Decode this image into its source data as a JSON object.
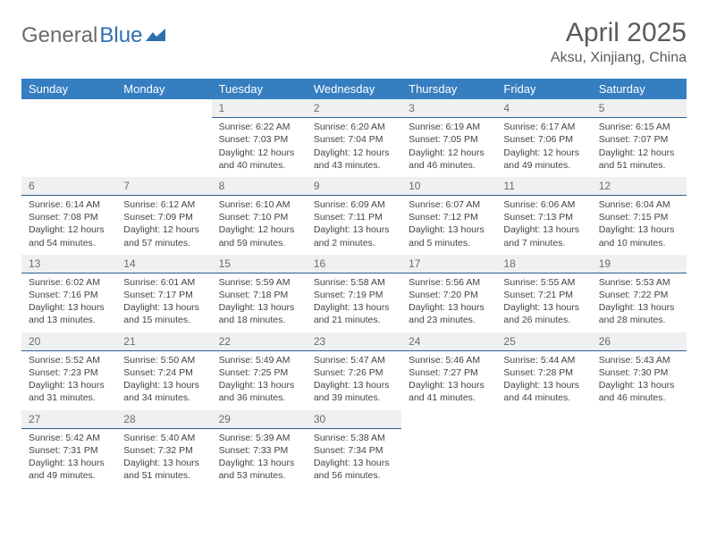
{
  "logo": {
    "part1": "General",
    "part2": "Blue"
  },
  "title": "April 2025",
  "location": "Aksu, Xinjiang, China",
  "colors": {
    "header_bg": "#357ec0",
    "header_text": "#ffffff",
    "daynum_bg": "#eef0f2",
    "daynum_border": "#2e5e8f",
    "body_bg": "#ffffff",
    "text": "#444444",
    "title_text": "#5a5a5a",
    "logo_gray": "#6b6b6b",
    "logo_blue": "#2f6fae"
  },
  "typography": {
    "title_fontsize": 30,
    "location_fontsize": 16,
    "weekday_fontsize": 13,
    "daynum_fontsize": 12,
    "body_fontsize": 10.5
  },
  "weekdays": [
    "Sunday",
    "Monday",
    "Tuesday",
    "Wednesday",
    "Thursday",
    "Friday",
    "Saturday"
  ],
  "weeks": [
    [
      {
        "empty": true
      },
      {
        "empty": true
      },
      {
        "num": "1",
        "sunrise": "Sunrise: 6:22 AM",
        "sunset": "Sunset: 7:03 PM",
        "daylight1": "Daylight: 12 hours",
        "daylight2": "and 40 minutes."
      },
      {
        "num": "2",
        "sunrise": "Sunrise: 6:20 AM",
        "sunset": "Sunset: 7:04 PM",
        "daylight1": "Daylight: 12 hours",
        "daylight2": "and 43 minutes."
      },
      {
        "num": "3",
        "sunrise": "Sunrise: 6:19 AM",
        "sunset": "Sunset: 7:05 PM",
        "daylight1": "Daylight: 12 hours",
        "daylight2": "and 46 minutes."
      },
      {
        "num": "4",
        "sunrise": "Sunrise: 6:17 AM",
        "sunset": "Sunset: 7:06 PM",
        "daylight1": "Daylight: 12 hours",
        "daylight2": "and 49 minutes."
      },
      {
        "num": "5",
        "sunrise": "Sunrise: 6:15 AM",
        "sunset": "Sunset: 7:07 PM",
        "daylight1": "Daylight: 12 hours",
        "daylight2": "and 51 minutes."
      }
    ],
    [
      {
        "num": "6",
        "sunrise": "Sunrise: 6:14 AM",
        "sunset": "Sunset: 7:08 PM",
        "daylight1": "Daylight: 12 hours",
        "daylight2": "and 54 minutes."
      },
      {
        "num": "7",
        "sunrise": "Sunrise: 6:12 AM",
        "sunset": "Sunset: 7:09 PM",
        "daylight1": "Daylight: 12 hours",
        "daylight2": "and 57 minutes."
      },
      {
        "num": "8",
        "sunrise": "Sunrise: 6:10 AM",
        "sunset": "Sunset: 7:10 PM",
        "daylight1": "Daylight: 12 hours",
        "daylight2": "and 59 minutes."
      },
      {
        "num": "9",
        "sunrise": "Sunrise: 6:09 AM",
        "sunset": "Sunset: 7:11 PM",
        "daylight1": "Daylight: 13 hours",
        "daylight2": "and 2 minutes."
      },
      {
        "num": "10",
        "sunrise": "Sunrise: 6:07 AM",
        "sunset": "Sunset: 7:12 PM",
        "daylight1": "Daylight: 13 hours",
        "daylight2": "and 5 minutes."
      },
      {
        "num": "11",
        "sunrise": "Sunrise: 6:06 AM",
        "sunset": "Sunset: 7:13 PM",
        "daylight1": "Daylight: 13 hours",
        "daylight2": "and 7 minutes."
      },
      {
        "num": "12",
        "sunrise": "Sunrise: 6:04 AM",
        "sunset": "Sunset: 7:15 PM",
        "daylight1": "Daylight: 13 hours",
        "daylight2": "and 10 minutes."
      }
    ],
    [
      {
        "num": "13",
        "sunrise": "Sunrise: 6:02 AM",
        "sunset": "Sunset: 7:16 PM",
        "daylight1": "Daylight: 13 hours",
        "daylight2": "and 13 minutes."
      },
      {
        "num": "14",
        "sunrise": "Sunrise: 6:01 AM",
        "sunset": "Sunset: 7:17 PM",
        "daylight1": "Daylight: 13 hours",
        "daylight2": "and 15 minutes."
      },
      {
        "num": "15",
        "sunrise": "Sunrise: 5:59 AM",
        "sunset": "Sunset: 7:18 PM",
        "daylight1": "Daylight: 13 hours",
        "daylight2": "and 18 minutes."
      },
      {
        "num": "16",
        "sunrise": "Sunrise: 5:58 AM",
        "sunset": "Sunset: 7:19 PM",
        "daylight1": "Daylight: 13 hours",
        "daylight2": "and 21 minutes."
      },
      {
        "num": "17",
        "sunrise": "Sunrise: 5:56 AM",
        "sunset": "Sunset: 7:20 PM",
        "daylight1": "Daylight: 13 hours",
        "daylight2": "and 23 minutes."
      },
      {
        "num": "18",
        "sunrise": "Sunrise: 5:55 AM",
        "sunset": "Sunset: 7:21 PM",
        "daylight1": "Daylight: 13 hours",
        "daylight2": "and 26 minutes."
      },
      {
        "num": "19",
        "sunrise": "Sunrise: 5:53 AM",
        "sunset": "Sunset: 7:22 PM",
        "daylight1": "Daylight: 13 hours",
        "daylight2": "and 28 minutes."
      }
    ],
    [
      {
        "num": "20",
        "sunrise": "Sunrise: 5:52 AM",
        "sunset": "Sunset: 7:23 PM",
        "daylight1": "Daylight: 13 hours",
        "daylight2": "and 31 minutes."
      },
      {
        "num": "21",
        "sunrise": "Sunrise: 5:50 AM",
        "sunset": "Sunset: 7:24 PM",
        "daylight1": "Daylight: 13 hours",
        "daylight2": "and 34 minutes."
      },
      {
        "num": "22",
        "sunrise": "Sunrise: 5:49 AM",
        "sunset": "Sunset: 7:25 PM",
        "daylight1": "Daylight: 13 hours",
        "daylight2": "and 36 minutes."
      },
      {
        "num": "23",
        "sunrise": "Sunrise: 5:47 AM",
        "sunset": "Sunset: 7:26 PM",
        "daylight1": "Daylight: 13 hours",
        "daylight2": "and 39 minutes."
      },
      {
        "num": "24",
        "sunrise": "Sunrise: 5:46 AM",
        "sunset": "Sunset: 7:27 PM",
        "daylight1": "Daylight: 13 hours",
        "daylight2": "and 41 minutes."
      },
      {
        "num": "25",
        "sunrise": "Sunrise: 5:44 AM",
        "sunset": "Sunset: 7:28 PM",
        "daylight1": "Daylight: 13 hours",
        "daylight2": "and 44 minutes."
      },
      {
        "num": "26",
        "sunrise": "Sunrise: 5:43 AM",
        "sunset": "Sunset: 7:30 PM",
        "daylight1": "Daylight: 13 hours",
        "daylight2": "and 46 minutes."
      }
    ],
    [
      {
        "num": "27",
        "sunrise": "Sunrise: 5:42 AM",
        "sunset": "Sunset: 7:31 PM",
        "daylight1": "Daylight: 13 hours",
        "daylight2": "and 49 minutes."
      },
      {
        "num": "28",
        "sunrise": "Sunrise: 5:40 AM",
        "sunset": "Sunset: 7:32 PM",
        "daylight1": "Daylight: 13 hours",
        "daylight2": "and 51 minutes."
      },
      {
        "num": "29",
        "sunrise": "Sunrise: 5:39 AM",
        "sunset": "Sunset: 7:33 PM",
        "daylight1": "Daylight: 13 hours",
        "daylight2": "and 53 minutes."
      },
      {
        "num": "30",
        "sunrise": "Sunrise: 5:38 AM",
        "sunset": "Sunset: 7:34 PM",
        "daylight1": "Daylight: 13 hours",
        "daylight2": "and 56 minutes."
      },
      {
        "empty": true
      },
      {
        "empty": true
      },
      {
        "empty": true
      }
    ]
  ]
}
